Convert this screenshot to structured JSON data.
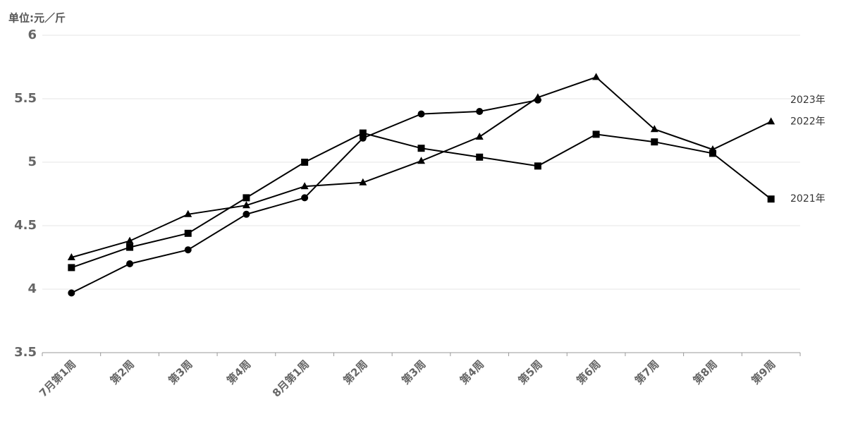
{
  "chart_data": {
    "type": "line",
    "y_label": "单位:元／斤",
    "categories": [
      "7月第1周",
      "第2周",
      "第3周",
      "第4周",
      "8月第1周",
      "第2周",
      "第3周",
      "第4周",
      "第5周",
      "第6周",
      "第7周",
      "第8周",
      "第9周"
    ],
    "series": [
      {
        "name": "2023年",
        "color": "#000000",
        "marker": "circle",
        "values": [
          3.97,
          4.2,
          4.31,
          4.59,
          4.72,
          5.19,
          5.38,
          5.4,
          5.49,
          null,
          null,
          null,
          null
        ]
      },
      {
        "name": "2022年",
        "color": "#000000",
        "marker": "triangle",
        "values": [
          4.25,
          4.38,
          4.59,
          4.66,
          4.81,
          4.84,
          5.01,
          5.2,
          5.51,
          5.67,
          5.26,
          5.1,
          5.32
        ]
      },
      {
        "name": "2021年",
        "color": "#000000",
        "marker": "square",
        "values": [
          4.17,
          4.33,
          4.44,
          4.72,
          5.0,
          5.23,
          5.11,
          5.04,
          4.97,
          5.22,
          5.16,
          5.07,
          4.71
        ]
      }
    ],
    "ylim": [
      3.5,
      6
    ],
    "yticks": [
      3.5,
      4,
      4.5,
      5,
      5.5,
      6
    ],
    "grid": true
  }
}
